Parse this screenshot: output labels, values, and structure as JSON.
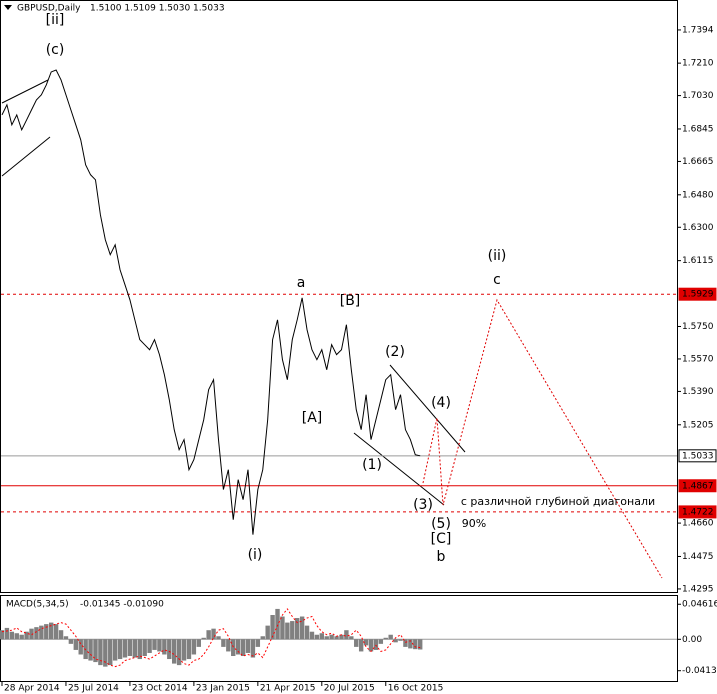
{
  "chart_data": [
    {
      "type": "line",
      "title": "GBPUSD,Daily",
      "subtitle": "1.5100 1.5109 1.5030 1.5033",
      "color": "#000000",
      "categories": [
        "28 Apr 2014",
        null,
        null,
        null,
        null,
        null,
        null,
        null,
        null,
        null,
        null,
        null,
        null,
        "25 Jul 2014",
        null,
        null,
        null,
        null,
        null,
        null,
        null,
        null,
        null,
        null,
        null,
        null,
        "23 Oct 2014",
        null,
        null,
        null,
        null,
        null,
        null,
        null,
        null,
        null,
        null,
        null,
        null,
        "23 Jan 2015",
        null,
        null,
        null,
        null,
        null,
        null,
        null,
        null,
        null,
        null,
        null,
        null,
        "21 Apr 2015",
        null,
        null,
        null,
        null,
        null,
        null,
        null,
        null,
        null,
        null,
        null,
        null,
        "20 Jul 2015",
        null,
        null,
        null,
        null,
        null,
        null,
        null,
        null,
        null,
        null,
        null,
        null,
        "16 Oct 2015",
        null,
        null,
        null,
        null,
        null,
        null,
        null
      ],
      "values": [
        1.6923,
        1.6979,
        1.6868,
        1.6923,
        1.684,
        1.6895,
        1.6951,
        1.7006,
        1.7034,
        1.7089,
        1.7161,
        1.7172,
        1.7117,
        1.7034,
        1.6951,
        1.6868,
        1.6785,
        1.6646,
        1.6591,
        1.6563,
        1.6369,
        1.6231,
        1.6148,
        1.6203,
        1.6064,
        1.5981,
        1.5898,
        1.5787,
        1.5677,
        1.5649,
        1.5621,
        1.5677,
        1.5594,
        1.5483,
        1.5344,
        1.5178,
        1.5067,
        1.5123,
        1.4956,
        1.5012,
        1.5123,
        1.5233,
        1.54,
        1.5455,
        1.5123,
        1.4846,
        1.4956,
        1.4679,
        1.4901,
        1.479,
        1.4956,
        1.4596,
        1.4846,
        1.4956,
        1.5233,
        1.5677,
        1.5787,
        1.5566,
        1.5455,
        1.5677,
        1.5787,
        1.5909,
        1.5732,
        1.5621,
        1.5566,
        1.5621,
        1.551,
        1.5649,
        1.5594,
        1.5621,
        1.576,
        1.551,
        1.5289,
        1.5178,
        1.5372,
        1.5123,
        1.5233,
        1.5344,
        1.5455,
        1.5483,
        1.5289,
        1.5372,
        1.5178,
        1.5123,
        1.5039,
        1.5033
      ],
      "ylim": [
        1.4278,
        1.756
      ],
      "yticks": [
        1.7394,
        {
          "value": 1.721,
          "label": "1.7210"
        },
        {
          "value": 1.703,
          "label": "1.7030"
        },
        1.6845,
        1.6665,
        {
          "value": 1.648,
          "label": "1.6480"
        },
        {
          "value": 1.63,
          "label": "1.6300"
        },
        1.6115,
        {
          "value": 1.575,
          "label": "1.5750"
        },
        {
          "value": 1.557,
          "label": "1.5570"
        },
        {
          "value": 1.539,
          "label": "1.5390"
        },
        1.5205,
        {
          "value": 1.466,
          "label": "1.4660"
        },
        1.4475,
        1.4295
      ],
      "levels": [
        {
          "value": 1.5929,
          "color": "#e00000",
          "style": "dashed"
        },
        {
          "value": 1.5033,
          "color": "#9a9a9a",
          "style": "solid"
        },
        {
          "value": 1.4867,
          "color": "#e00000",
          "style": "solid"
        },
        {
          "value": 1.4722,
          "color": "#e00000",
          "style": "dashed"
        }
      ],
      "annotations": [
        {
          "text": "[ii]",
          "color": "#e00000"
        },
        {
          "text": "(c)",
          "color": "#1f8a1f"
        },
        {
          "text": "a",
          "color": "#1414d2"
        },
        {
          "text": "[B]",
          "color": "#e00000"
        },
        {
          "text": "(2)",
          "color": "#1f8a1f"
        },
        {
          "text": "(ii)",
          "color": "#1f8a1f"
        },
        {
          "text": "c",
          "color": "#1414d2"
        },
        {
          "text": "[A]",
          "color": "#e00000"
        },
        {
          "text": "(4)",
          "color": "#1f8a1f"
        },
        {
          "text": "(1)",
          "color": "#1f8a1f"
        },
        {
          "text": "(3)",
          "color": "#1f8a1f"
        },
        {
          "text": "с различной глубиной диагонали",
          "color": "#000000"
        },
        {
          "text": "(5)",
          "color": "#1f8a1f"
        },
        {
          "text": "90%",
          "color": "#000000"
        },
        {
          "text": "[C]",
          "color": "#e00000"
        },
        {
          "text": "b",
          "color": "#1414d2"
        },
        {
          "text": "(i)",
          "color": "#1f8a1f"
        }
      ]
    },
    {
      "type": "bar",
      "title": "MACD(5,34,5)",
      "subtitle": "-0.01345 -0.01090",
      "ylim": [
        -0.0536,
        0.0557
      ],
      "yticks": [
        0.04616,
        {
          "value": 0,
          "label": "0.00"
        },
        -0.04136
      ],
      "series": [
        {
          "color": "#808080",
          "values": [
            0.012,
            0.015,
            0.01,
            0.008,
            0.006,
            0.01,
            0.014,
            0.016,
            0.018,
            0.02,
            0.022,
            0.02,
            0.012,
            0.004,
            -0.006,
            -0.014,
            -0.02,
            -0.026,
            -0.028,
            -0.03,
            -0.034,
            -0.036,
            -0.034,
            -0.028,
            -0.026,
            -0.024,
            -0.022,
            -0.024,
            -0.026,
            -0.022,
            -0.018,
            -0.014,
            -0.016,
            -0.02,
            -0.026,
            -0.032,
            -0.034,
            -0.028,
            -0.026,
            -0.02,
            -0.01,
            0.002,
            0.012,
            0.014,
            0.004,
            -0.01,
            -0.016,
            -0.022,
            -0.02,
            -0.022,
            -0.018,
            -0.024,
            -0.01,
            0.004,
            0.018,
            0.032,
            0.04,
            0.03,
            0.022,
            0.024,
            0.028,
            0.03,
            0.018,
            0.01,
            0.006,
            0.008,
            0.004,
            0.006,
            0.004,
            0.006,
            0.012,
            0.004,
            -0.01,
            -0.016,
            -0.008,
            -0.016,
            -0.014,
            -0.006,
            0.002,
            0.006,
            -0.004,
            -0.002,
            -0.01,
            -0.012,
            -0.013,
            -0.01345
          ]
        },
        {
          "type": "line",
          "color": "#ff0000",
          "style": "dotted",
          "values": [
            0.01,
            0.011,
            0.012,
            0.015,
            0.01,
            0.008,
            0.006,
            0.01,
            0.014,
            0.016,
            0.018,
            0.02,
            0.022,
            0.02,
            0.012,
            0.004,
            -0.006,
            -0.014,
            -0.02,
            -0.026,
            -0.028,
            -0.03,
            -0.034,
            -0.036,
            -0.034,
            -0.028,
            -0.026,
            -0.024,
            -0.022,
            -0.024,
            -0.026,
            -0.022,
            -0.018,
            -0.014,
            -0.016,
            -0.02,
            -0.026,
            -0.032,
            -0.034,
            -0.028,
            -0.026,
            -0.02,
            -0.01,
            0.002,
            0.012,
            0.014,
            0.004,
            -0.01,
            -0.016,
            -0.022,
            -0.02,
            -0.022,
            -0.018,
            -0.024,
            -0.01,
            0.004,
            0.018,
            0.032,
            0.04,
            0.03,
            0.022,
            0.024,
            0.028,
            0.03,
            0.018,
            0.01,
            0.006,
            0.008,
            0.004,
            0.006,
            0.004,
            0.006,
            0.012,
            0.004,
            -0.01,
            -0.016,
            -0.008,
            -0.016,
            -0.014,
            -0.006,
            0.002,
            0.006,
            -0.004,
            -0.002,
            -0.01,
            -0.0109
          ]
        }
      ]
    }
  ]
}
